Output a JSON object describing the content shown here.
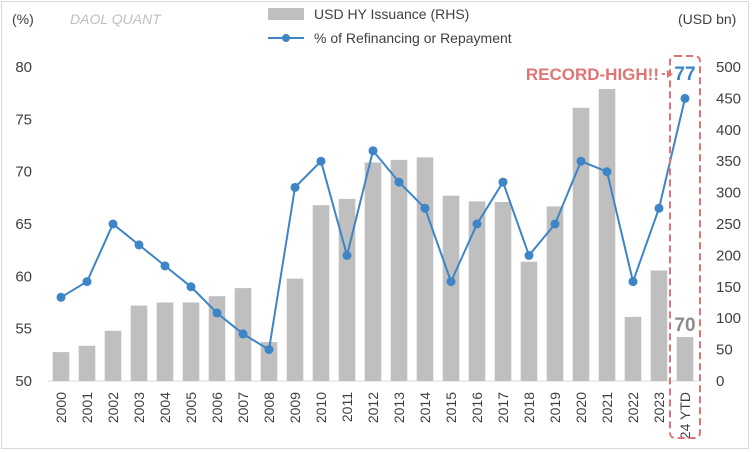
{
  "chart_data": {
    "type": "bar+line",
    "watermark": "DAOL QUANT",
    "left_axis": {
      "unit_label": "(%)",
      "ylim": [
        50,
        80
      ],
      "ticks": [
        "50",
        "55",
        "60",
        "65",
        "70",
        "75",
        "80"
      ]
    },
    "right_axis": {
      "unit_label": "(USD bn)",
      "ylim": [
        0,
        500
      ],
      "ticks": [
        "0",
        "50",
        "100",
        "150",
        "200",
        "250",
        "300",
        "350",
        "400",
        "450",
        "500"
      ]
    },
    "categories": [
      "2000",
      "2001",
      "2002",
      "2003",
      "2004",
      "2005",
      "2006",
      "2007",
      "2008",
      "2009",
      "2010",
      "2011",
      "2012",
      "2013",
      "2014",
      "2015",
      "2016",
      "2017",
      "2018",
      "2019",
      "2020",
      "2021",
      "2022",
      "2023",
      "24 YTD"
    ],
    "series": [
      {
        "name": "USD HY Issuance (RHS)",
        "type": "bar",
        "axis": "right",
        "color": "#bfbfbf",
        "values": [
          46,
          56,
          80,
          120,
          125,
          125,
          135,
          148,
          62,
          163,
          280,
          290,
          348,
          352,
          356,
          295,
          286,
          285,
          190,
          278,
          435,
          465,
          102,
          176,
          70
        ]
      },
      {
        "name": "% of Refinancing or Repayment",
        "type": "line",
        "axis": "left",
        "color": "#3d85c6",
        "values": [
          58.0,
          59.5,
          65.0,
          63.0,
          61.0,
          59.0,
          56.5,
          54.5,
          53.0,
          68.5,
          71.0,
          62.0,
          72.0,
          69.0,
          66.5,
          59.5,
          65.0,
          69.0,
          62.0,
          65.0,
          71.0,
          70.0,
          59.5,
          66.5,
          77.0
        ]
      }
    ],
    "annotations": {
      "callout": "RECORD-HIGH!!",
      "highlight_line_value": "77",
      "highlight_bar_value": "70",
      "highlight_category": "24 YTD"
    },
    "legend_position": "top-center",
    "grid": false
  }
}
